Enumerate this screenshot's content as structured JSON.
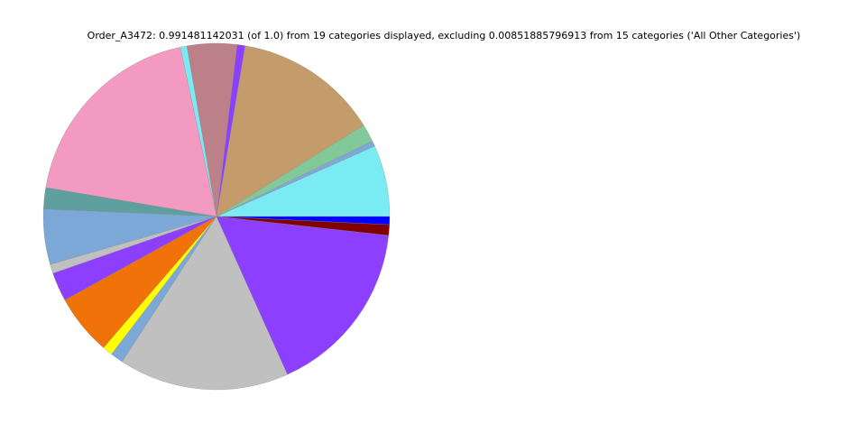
{
  "chart_data": {
    "type": "pie",
    "title": "Order_A3472: 0.991481142031 (of 1.0) from 19 categories displayed, excluding 0.00851885796913 from 15 categories ('All Other Categories')",
    "start_angle_deg": 0,
    "direction": "counterclockwise",
    "legend": "none",
    "slices": [
      {
        "value": 0.0661,
        "color": "#7BEBF3"
      },
      {
        "value": 0.005,
        "color": "#7FA8D8"
      },
      {
        "value": 0.0165,
        "color": "#82C99A"
      },
      {
        "value": 0.134,
        "color": "#C49C6B"
      },
      {
        "value": 0.0074,
        "color": "#8C3FFF"
      },
      {
        "value": 0.046,
        "color": "#BC8089"
      },
      {
        "value": 0.0061,
        "color": "#7BEBF3"
      },
      {
        "value": 0.188,
        "color": "#F39AC2"
      },
      {
        "value": 0.0198,
        "color": "#5F9F9F"
      },
      {
        "value": 0.051,
        "color": "#7CA8D8"
      },
      {
        "value": 0.0085,
        "color": "#C0C0C0"
      },
      {
        "value": 0.0267,
        "color": "#8C3FFF"
      },
      {
        "value": 0.0562,
        "color": "#F07208"
      },
      {
        "value": 0.0094,
        "color": "#FFFF00"
      },
      {
        "value": 0.0118,
        "color": "#7CA8D8"
      },
      {
        "value": 0.1575,
        "color": "#C0C0C0"
      },
      {
        "value": 0.1639,
        "color": "#8C3FFF"
      },
      {
        "value": 0.0099,
        "color": "#800000"
      },
      {
        "value": 0.0074,
        "color": "#0000FF"
      }
    ]
  }
}
